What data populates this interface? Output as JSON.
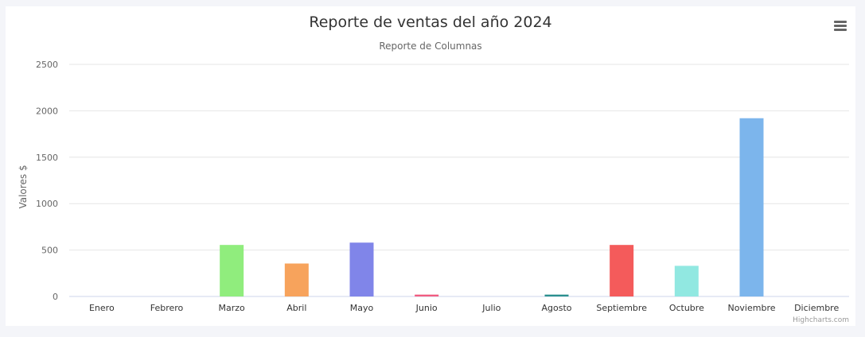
{
  "chart_data": {
    "type": "bar",
    "title": "Reporte de ventas del año 2024",
    "subtitle": "Reporte de Columnas",
    "xlabel": "",
    "ylabel": "Valores $",
    "ylim": [
      0,
      2500
    ],
    "yticks": [
      0,
      500,
      1000,
      1500,
      2000,
      2500
    ],
    "grid": true,
    "legend": "none",
    "categories": [
      "Enero",
      "Febrero",
      "Marzo",
      "Abril",
      "Mayo",
      "Junio",
      "Julio",
      "Agosto",
      "Septiembre",
      "Octubre",
      "Noviembre",
      "Diciembre"
    ],
    "values": [
      0,
      0,
      555,
      355,
      580,
      20,
      0,
      20,
      555,
      330,
      1920,
      0
    ],
    "colors": [
      "#7cb5ec",
      "#434348",
      "#90ed7d",
      "#f7a35c",
      "#8085e9",
      "#f15c80",
      "#e4d354",
      "#2b908f",
      "#f45b5b",
      "#91e8e1",
      "#7cb5ec",
      "#434348"
    ]
  },
  "credits": "Highcharts.com",
  "menu": {
    "icon": "hamburger-menu-icon"
  }
}
